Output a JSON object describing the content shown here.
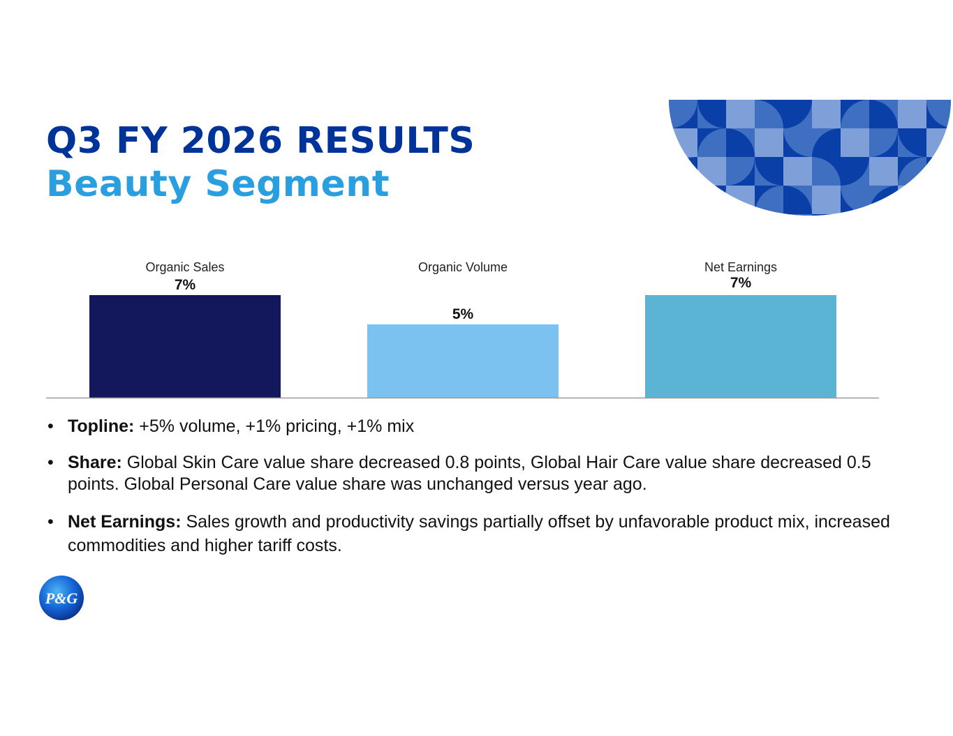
{
  "slide": {
    "title": "Q3 FY 2026 RESULTS",
    "subtitle": "Beauty Segment"
  },
  "chart_data": {
    "type": "bar",
    "categories": [
      "Organic Sales",
      "Organic Volume",
      "Net Earnings"
    ],
    "values": [
      7,
      5,
      7
    ],
    "data_labels": [
      "7%",
      "5%",
      "7%"
    ],
    "colors": [
      "#13185c",
      "#7cc2f0",
      "#5bb4d4"
    ],
    "ylim": [
      0,
      7
    ],
    "grid": false,
    "legend": "none"
  },
  "bullets": [
    {
      "label": "Topline:",
      "text": " +5% volume, +1% pricing, +1% mix"
    },
    {
      "label": "Share:",
      "text": " Global Skin Care value share decreased 0.8 points, Global Hair Care value share decreased 0.5 points. Global Personal Care value share was unchanged versus year ago."
    },
    {
      "label": "Net Earnings:",
      "text": " Sales growth and productivity savings partially offset by unfavorable product mix, increased commodities and higher tariff costs."
    }
  ],
  "bullet_symbol": "•",
  "logo": {
    "text": "P&G",
    "icon": "pg-logo-icon"
  },
  "colors": {
    "title": "#003399",
    "subtitle": "#2a9fe0",
    "deco_dark": "#0a3fa8",
    "deco_mid": "#3e6fc0",
    "deco_light": "#7f9fd8"
  }
}
